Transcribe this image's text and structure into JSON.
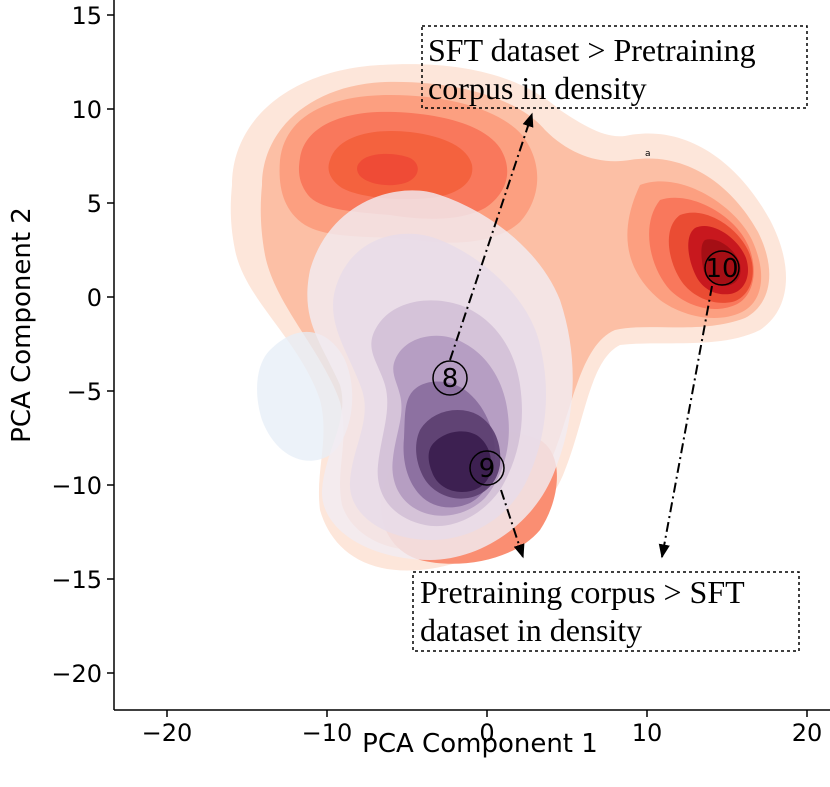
{
  "chart_data": {
    "type": "contour",
    "xlabel": "PCA Component 1",
    "ylabel": "PCA Component 2",
    "xlim": [
      -23,
      21
    ],
    "ylim": [
      -22,
      16
    ],
    "xticks": [
      -20,
      -10,
      0,
      10,
      20
    ],
    "yticks": [
      -20,
      -15,
      -10,
      -5,
      0,
      5,
      10,
      15
    ],
    "xtick_labels": [
      "−20",
      "−10",
      "0",
      "10",
      "20"
    ],
    "ytick_labels": [
      "−20",
      "−15",
      "−10",
      "−5",
      "0",
      "5",
      "10",
      "15"
    ],
    "colors": {
      "reds_light": "#fde6da",
      "reds_mid": "#f9856a",
      "reds_dark": "#c11a1f",
      "purples_dark": "#3b1f4f",
      "blue_light": "#e2eef8"
    },
    "series": [
      {
        "colormap": "reds",
        "peaks": [
          {
            "x": -7,
            "y": 6.5
          },
          {
            "x": 14.8,
            "y": 1.5
          },
          {
            "x": 2,
            "y": -12
          }
        ]
      },
      {
        "colormap": "purples",
        "peaks": [
          {
            "x": -1.5,
            "y": -8.5
          }
        ]
      }
    ],
    "markers": [
      {
        "label": "⑧",
        "x": -2.3,
        "y": -4.4
      },
      {
        "label": "⑨",
        "x": 0.2,
        "y": -9.1
      },
      {
        "label": "⑩",
        "x": 14.9,
        "y": 1.5
      }
    ],
    "annotations": [
      {
        "lines": [
          "SFT dataset > Pretraining",
          "corpus in density"
        ],
        "arrows": [
          {
            "from": [
              -2.3,
              -3.8
            ],
            "to": [
              2.8,
              9.9
            ]
          }
        ]
      },
      {
        "lines": [
          "Pretraining corpus > SFT",
          "dataset in density"
        ],
        "arrows": [
          {
            "from": [
              1.0,
              -10.2
            ],
            "to": [
              2.4,
              -13.9
            ]
          },
          {
            "from": [
              14.2,
              0.5
            ],
            "to": [
              10.8,
              -13.9
            ]
          }
        ]
      }
    ],
    "stray_text": "a"
  }
}
